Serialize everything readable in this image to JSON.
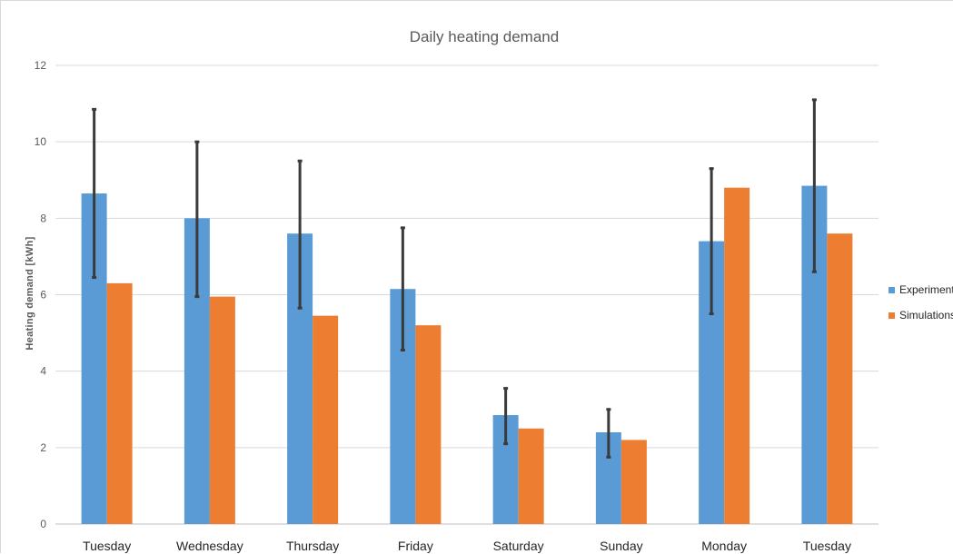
{
  "chart_data": {
    "type": "bar",
    "title": "Daily heating demand",
    "ylabel": "Heating demand [kWh]",
    "xlabel": "",
    "ylim": [
      0,
      12
    ],
    "yticks": [
      0,
      2,
      4,
      6,
      8,
      10,
      12
    ],
    "grid": true,
    "legend_position": "right",
    "categories": [
      "Tuesday",
      "Wednesday",
      "Thursday",
      "Friday",
      "Saturday",
      "Sunday",
      "Monday",
      "Tuesday"
    ],
    "series": [
      {
        "name": "Experiments",
        "color": "#5b9bd5",
        "values": [
          8.65,
          8.0,
          7.6,
          6.15,
          2.85,
          2.4,
          7.4,
          8.85
        ],
        "error_low": [
          6.45,
          5.95,
          5.65,
          4.55,
          2.1,
          1.75,
          5.5,
          6.6
        ],
        "error_high": [
          10.85,
          10.0,
          9.5,
          7.75,
          3.55,
          3.0,
          9.3,
          11.1
        ]
      },
      {
        "name": "Simulations",
        "color": "#ed7d31",
        "values": [
          6.3,
          5.95,
          5.45,
          5.2,
          2.5,
          2.2,
          8.8,
          7.6
        ]
      }
    ]
  }
}
